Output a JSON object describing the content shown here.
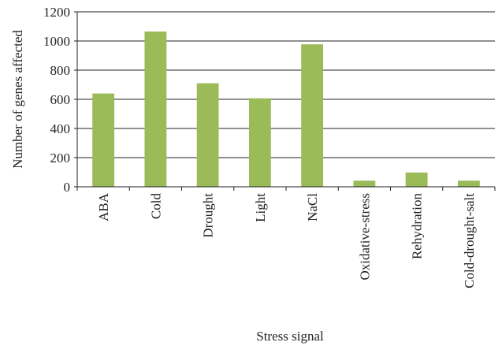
{
  "chart_data": {
    "type": "bar",
    "title": "",
    "xlabel": "Stress signal",
    "ylabel": "Number of genes affected",
    "categories": [
      "ABA",
      "Cold",
      "Drought",
      "Light",
      "NaCl",
      "Oxidative-stress",
      "Rehydration",
      "Cold-drought-salt"
    ],
    "values": [
      640,
      1065,
      710,
      607,
      977,
      42,
      98,
      42
    ],
    "ylim": [
      0,
      1200
    ],
    "yticks": [
      0,
      200,
      400,
      600,
      800,
      1000,
      1200
    ],
    "grid": "horizontal",
    "legend": "none",
    "colors": {
      "bar": "#9bbb59",
      "grid": "#222222",
      "axis": "#222222"
    }
  }
}
